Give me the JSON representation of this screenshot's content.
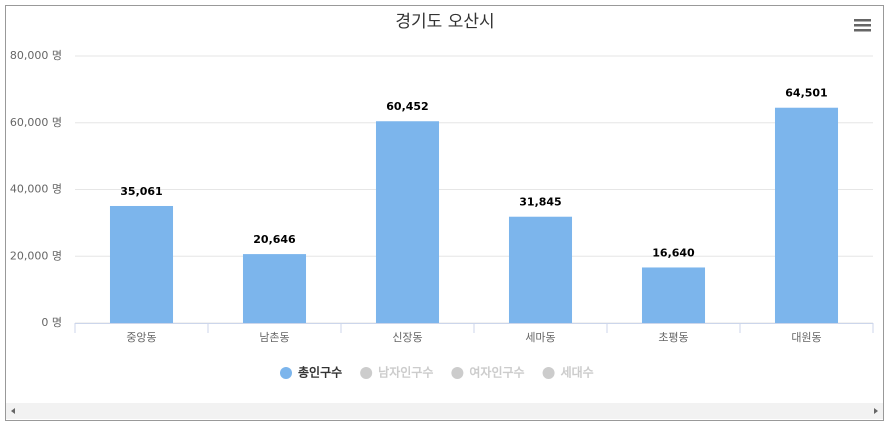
{
  "chart_data": {
    "type": "bar",
    "title": "경기도 오산시",
    "categories": [
      "중앙동",
      "남촌동",
      "신장동",
      "세마동",
      "초평동",
      "대원동"
    ],
    "series": [
      {
        "name": "총인구수",
        "color": "#7cb5ec",
        "values": [
          35061,
          20646,
          60452,
          31845,
          16640,
          64501
        ],
        "value_labels": [
          "35,061",
          "20,646",
          "60,452",
          "31,845",
          "16,640",
          "64,501"
        ]
      }
    ],
    "hidden_series": [
      "남자인구수",
      "여자인구수",
      "세대수"
    ],
    "ylim": [
      0,
      80000
    ],
    "yticks": [
      {
        "value": 0,
        "label": "0 명"
      },
      {
        "value": 20000,
        "label": "20,000 명"
      },
      {
        "value": 40000,
        "label": "40,000 명"
      },
      {
        "value": 60000,
        "label": "60,000 명"
      },
      {
        "value": 80000,
        "label": "80,000 명"
      }
    ],
    "grid": true,
    "legend": "bottom"
  }
}
